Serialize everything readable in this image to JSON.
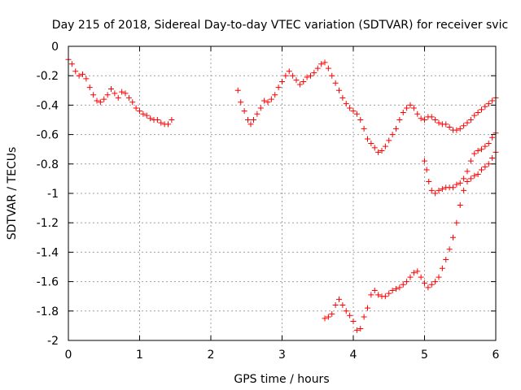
{
  "chart_data": {
    "type": "scatter",
    "title": "Day 215 of 2018, Sidereal Day-to-day VTEC variation (SDTVAR) for receiver svic",
    "xlabel": "GPS time / hours",
    "ylabel": "SDTVAR / TECUs",
    "xlim": [
      0,
      6
    ],
    "ylim": [
      -2,
      0
    ],
    "grid": true,
    "marker": "plus",
    "xticks": [
      0,
      1,
      2,
      3,
      4,
      5,
      6
    ],
    "xtick_labels": [
      "0",
      "1",
      "2",
      "3",
      "4",
      "5",
      "6"
    ],
    "yticks": [
      0,
      -0.2,
      -0.4,
      -0.6,
      -0.8,
      -1,
      -1.2,
      -1.4,
      -1.6,
      -1.8,
      -2
    ],
    "ytick_labels": [
      "0",
      "-0.2",
      "-0.4",
      "-0.6",
      "-0.8",
      "-1",
      "-1.2",
      "-1.4",
      "-1.6",
      "-1.8",
      "-2"
    ],
    "color": "#ff0000",
    "series": [
      {
        "name": "segment-1",
        "points": [
          [
            0.0,
            -0.09
          ],
          [
            0.05,
            -0.12
          ],
          [
            0.1,
            -0.17
          ],
          [
            0.15,
            -0.2
          ],
          [
            0.2,
            -0.19
          ],
          [
            0.25,
            -0.22
          ],
          [
            0.3,
            -0.28
          ],
          [
            0.35,
            -0.33
          ],
          [
            0.4,
            -0.37
          ],
          [
            0.45,
            -0.38
          ],
          [
            0.5,
            -0.36
          ],
          [
            0.55,
            -0.33
          ],
          [
            0.6,
            -0.29
          ],
          [
            0.65,
            -0.32
          ],
          [
            0.7,
            -0.35
          ],
          [
            0.75,
            -0.31
          ],
          [
            0.8,
            -0.32
          ],
          [
            0.85,
            -0.35
          ],
          [
            0.9,
            -0.38
          ],
          [
            0.95,
            -0.42
          ],
          [
            1.0,
            -0.44
          ],
          [
            1.05,
            -0.46
          ],
          [
            1.1,
            -0.47
          ],
          [
            1.15,
            -0.49
          ],
          [
            1.2,
            -0.5
          ],
          [
            1.25,
            -0.5
          ],
          [
            1.3,
            -0.52
          ],
          [
            1.35,
            -0.53
          ],
          [
            1.4,
            -0.53
          ],
          [
            1.45,
            -0.5
          ]
        ]
      },
      {
        "name": "segment-2",
        "points": [
          [
            2.38,
            -0.3
          ],
          [
            2.42,
            -0.38
          ],
          [
            2.47,
            -0.44
          ],
          [
            2.52,
            -0.5
          ],
          [
            2.56,
            -0.53
          ],
          [
            2.6,
            -0.5
          ],
          [
            2.65,
            -0.46
          ],
          [
            2.7,
            -0.42
          ],
          [
            2.75,
            -0.37
          ],
          [
            2.8,
            -0.38
          ],
          [
            2.85,
            -0.36
          ],
          [
            2.9,
            -0.33
          ],
          [
            2.95,
            -0.28
          ],
          [
            3.0,
            -0.24
          ],
          [
            3.05,
            -0.2
          ],
          [
            3.1,
            -0.17
          ],
          [
            3.15,
            -0.2
          ],
          [
            3.2,
            -0.23
          ],
          [
            3.25,
            -0.26
          ],
          [
            3.3,
            -0.24
          ],
          [
            3.35,
            -0.21
          ],
          [
            3.4,
            -0.2
          ],
          [
            3.45,
            -0.18
          ],
          [
            3.5,
            -0.15
          ],
          [
            3.55,
            -0.12
          ],
          [
            3.6,
            -0.11
          ],
          [
            3.65,
            -0.15
          ],
          [
            3.7,
            -0.2
          ],
          [
            3.75,
            -0.25
          ],
          [
            3.8,
            -0.3
          ],
          [
            3.85,
            -0.35
          ],
          [
            3.9,
            -0.39
          ],
          [
            3.95,
            -0.42
          ],
          [
            4.0,
            -0.44
          ],
          [
            4.05,
            -0.46
          ],
          [
            4.1,
            -0.5
          ],
          [
            4.15,
            -0.56
          ],
          [
            4.2,
            -0.63
          ],
          [
            4.25,
            -0.66
          ],
          [
            4.3,
            -0.69
          ],
          [
            4.35,
            -0.72
          ],
          [
            4.4,
            -0.71
          ],
          [
            4.45,
            -0.68
          ],
          [
            4.5,
            -0.64
          ],
          [
            4.55,
            -0.6
          ],
          [
            4.6,
            -0.56
          ],
          [
            4.65,
            -0.5
          ],
          [
            4.7,
            -0.45
          ],
          [
            4.75,
            -0.42
          ],
          [
            4.8,
            -0.4
          ],
          [
            4.85,
            -0.42
          ],
          [
            4.9,
            -0.46
          ],
          [
            4.95,
            -0.49
          ],
          [
            5.0,
            -0.5
          ],
          [
            5.05,
            -0.48
          ],
          [
            5.1,
            -0.48
          ],
          [
            5.15,
            -0.5
          ],
          [
            5.2,
            -0.52
          ],
          [
            5.25,
            -0.53
          ],
          [
            5.3,
            -0.53
          ],
          [
            5.35,
            -0.55
          ],
          [
            5.4,
            -0.57
          ],
          [
            5.45,
            -0.57
          ],
          [
            5.5,
            -0.56
          ],
          [
            5.55,
            -0.54
          ],
          [
            5.6,
            -0.52
          ],
          [
            5.65,
            -0.5
          ],
          [
            5.7,
            -0.47
          ],
          [
            5.75,
            -0.45
          ],
          [
            5.8,
            -0.43
          ],
          [
            5.85,
            -0.41
          ],
          [
            5.9,
            -0.39
          ],
          [
            5.95,
            -0.37
          ],
          [
            6.0,
            -0.35
          ]
        ]
      },
      {
        "name": "segment-3",
        "points": [
          [
            3.6,
            -1.85
          ],
          [
            3.65,
            -1.84
          ],
          [
            3.7,
            -1.82
          ],
          [
            3.75,
            -1.76
          ],
          [
            3.8,
            -1.72
          ],
          [
            3.85,
            -1.76
          ],
          [
            3.9,
            -1.8
          ],
          [
            3.95,
            -1.83
          ],
          [
            4.0,
            -1.87
          ],
          [
            4.05,
            -1.93
          ],
          [
            4.1,
            -1.92
          ],
          [
            4.15,
            -1.84
          ],
          [
            4.2,
            -1.78
          ],
          [
            4.25,
            -1.69
          ],
          [
            4.3,
            -1.66
          ],
          [
            4.35,
            -1.69
          ],
          [
            4.4,
            -1.7
          ],
          [
            4.45,
            -1.7
          ],
          [
            4.5,
            -1.68
          ],
          [
            4.55,
            -1.66
          ],
          [
            4.6,
            -1.65
          ],
          [
            4.65,
            -1.64
          ],
          [
            4.7,
            -1.62
          ],
          [
            4.75,
            -1.6
          ],
          [
            4.8,
            -1.57
          ],
          [
            4.85,
            -1.54
          ],
          [
            4.9,
            -1.53
          ],
          [
            4.95,
            -1.57
          ],
          [
            5.0,
            -1.61
          ],
          [
            5.05,
            -1.64
          ],
          [
            5.1,
            -1.62
          ],
          [
            5.15,
            -1.6
          ],
          [
            5.2,
            -1.57
          ],
          [
            5.25,
            -1.51
          ],
          [
            5.3,
            -1.45
          ],
          [
            5.35,
            -1.38
          ],
          [
            5.4,
            -1.3
          ],
          [
            5.45,
            -1.2
          ],
          [
            5.5,
            -1.08
          ],
          [
            5.55,
            -0.98
          ],
          [
            5.6,
            -0.92
          ],
          [
            5.65,
            -0.9
          ],
          [
            5.7,
            -0.88
          ],
          [
            5.75,
            -0.87
          ],
          [
            5.8,
            -0.84
          ],
          [
            5.85,
            -0.82
          ],
          [
            5.9,
            -0.8
          ],
          [
            5.95,
            -0.76
          ],
          [
            6.0,
            -0.72
          ]
        ]
      },
      {
        "name": "segment-4",
        "points": [
          [
            5.0,
            -0.78
          ],
          [
            5.03,
            -0.84
          ],
          [
            5.06,
            -0.92
          ],
          [
            5.1,
            -0.98
          ],
          [
            5.15,
            -1.0
          ],
          [
            5.2,
            -0.98
          ],
          [
            5.25,
            -0.97
          ],
          [
            5.3,
            -0.96
          ],
          [
            5.35,
            -0.96
          ],
          [
            5.4,
            -0.96
          ],
          [
            5.45,
            -0.94
          ],
          [
            5.5,
            -0.93
          ],
          [
            5.55,
            -0.9
          ],
          [
            5.6,
            -0.85
          ],
          [
            5.65,
            -0.78
          ],
          [
            5.7,
            -0.73
          ],
          [
            5.75,
            -0.71
          ],
          [
            5.8,
            -0.7
          ],
          [
            5.85,
            -0.68
          ],
          [
            5.9,
            -0.66
          ],
          [
            5.95,
            -0.62
          ],
          [
            6.0,
            -0.59
          ]
        ]
      }
    ]
  }
}
